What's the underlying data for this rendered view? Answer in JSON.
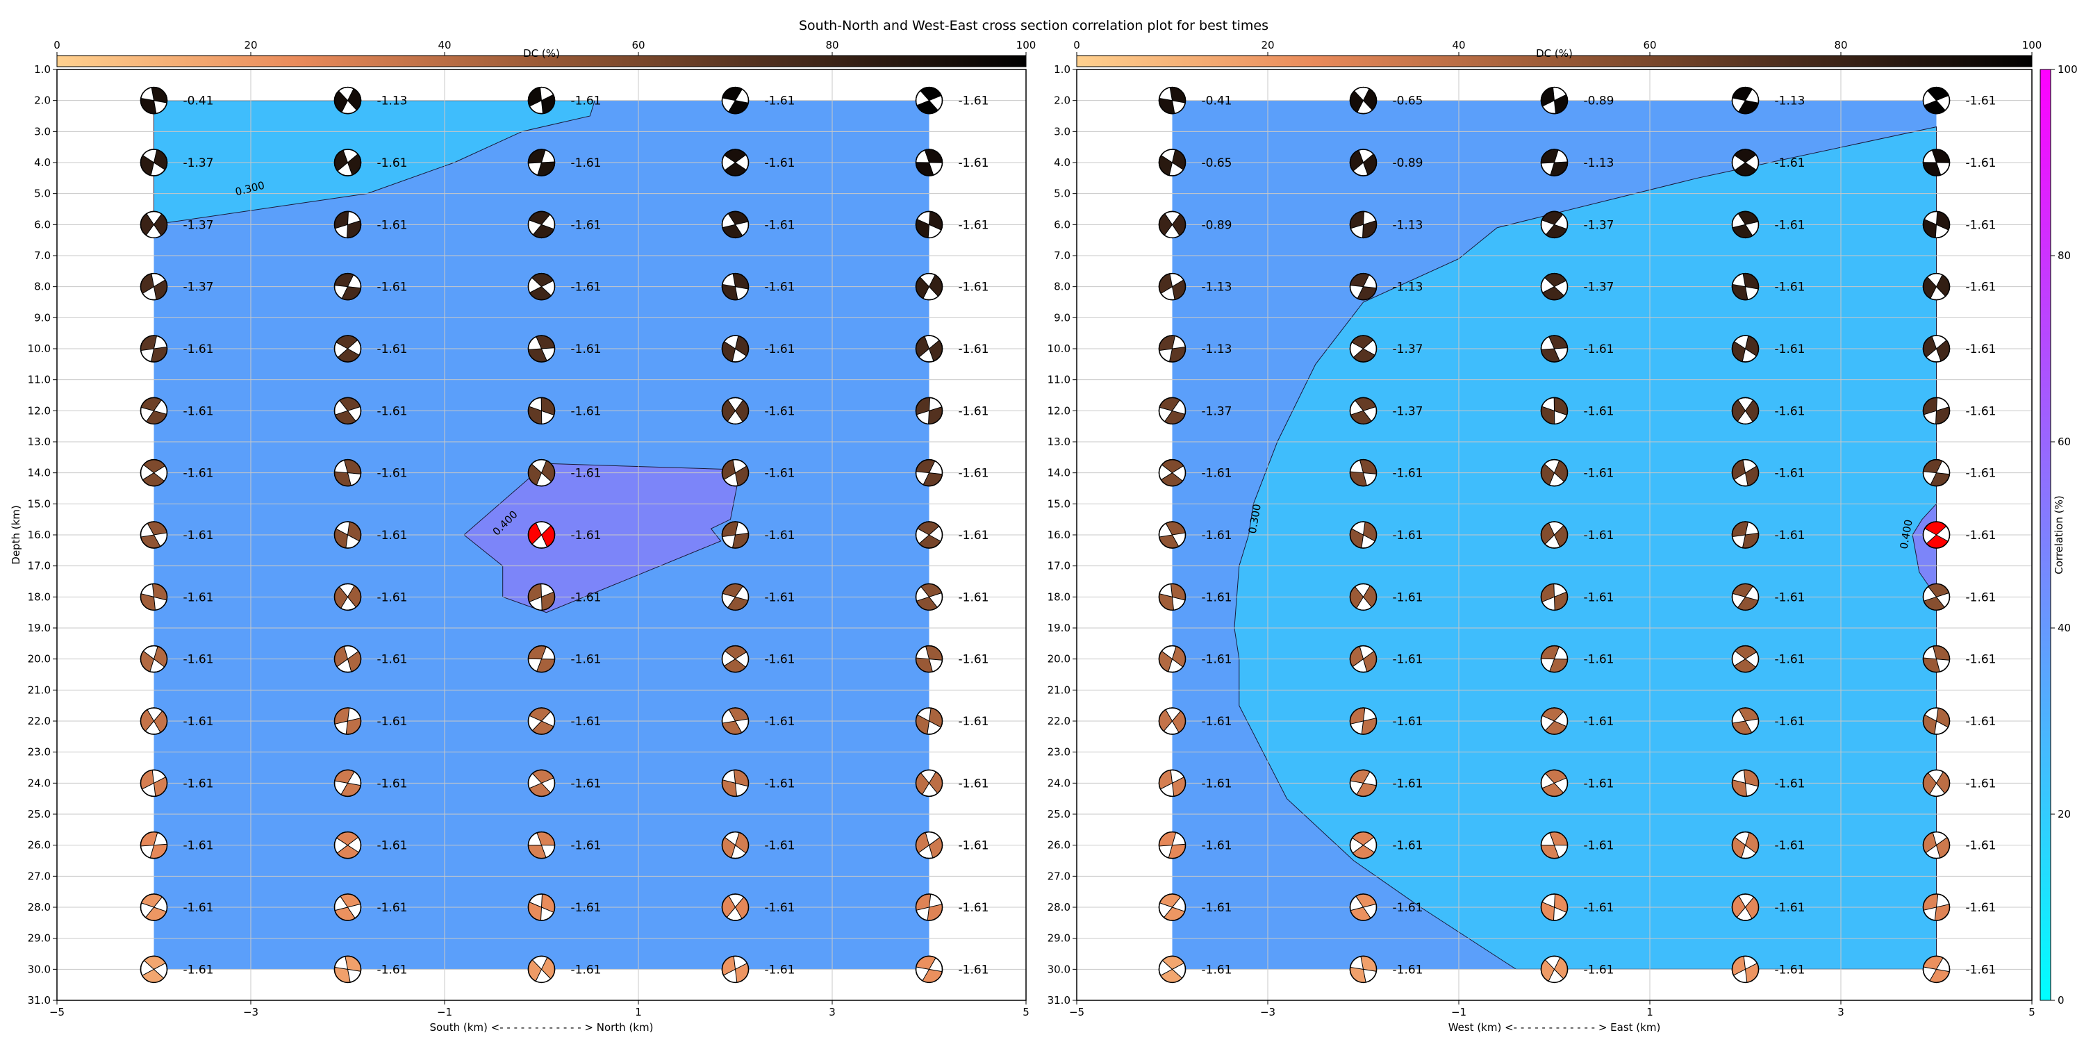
{
  "figure": {
    "title": "South-North and West-East cross section correlation plot for best times"
  },
  "colors": {
    "region_low": "#3fbdfc",
    "region_mid": "#5b9ffa",
    "region_high": "#7c85f9",
    "best_solution": "#ff0000",
    "grid": "#c8c8c8",
    "correlation_cmap": [
      "#00ffff",
      "#ff00ff"
    ],
    "dc_cmap": [
      "#ffd08e",
      "#e98a5a",
      "#9a5a36",
      "#4a2c1c",
      "#000000"
    ]
  },
  "chart_data": [
    {
      "type": "heatmap",
      "name": "south-north",
      "xlabel": "South (km) <- - - - - - - - - - - - > North (km)",
      "ylabel": "Depth (km)",
      "xlim": [
        -5,
        5
      ],
      "ylim": [
        31,
        1
      ],
      "x_ticks": [
        "−5",
        "−3",
        "−1",
        "1",
        "3",
        "5"
      ],
      "y_ticks": [
        "1.0",
        "2.0",
        "3.0",
        "4.0",
        "5.0",
        "6.0",
        "7.0",
        "8.0",
        "9.0",
        "10.0",
        "11.0",
        "12.0",
        "13.0",
        "14.0",
        "15.0",
        "16.0",
        "17.0",
        "18.0",
        "19.0",
        "20.0",
        "21.0",
        "22.0",
        "23.0",
        "24.0",
        "25.0",
        "26.0",
        "27.0",
        "28.0",
        "29.0",
        "30.0",
        "31.0"
      ],
      "grid": true,
      "region": {
        "x": [
          -4,
          4
        ],
        "depth": [
          2,
          30
        ]
      },
      "contours": [
        {
          "label": "0.300",
          "level": 0.3,
          "polygon": [
            [
              -4,
              6
            ],
            [
              -1.8,
              5
            ],
            [
              -0.9,
              4
            ],
            [
              -0.2,
              3
            ],
            [
              0.5,
              2.5
            ],
            [
              0.55,
              2
            ],
            [
              -4,
              2
            ]
          ]
        },
        {
          "label": "0.400",
          "level": 0.4,
          "polygon": [
            [
              0.05,
              13.7
            ],
            [
              2.05,
              13.9
            ],
            [
              1.95,
              15.5
            ],
            [
              1.75,
              15.8
            ],
            [
              1.85,
              16.2
            ],
            [
              0.05,
              18.5
            ],
            [
              -0.4,
              18.0
            ],
            [
              -0.4,
              17.0
            ],
            [
              -0.8,
              16.0
            ],
            [
              -0.1,
              14.1
            ]
          ]
        }
      ],
      "contour_label_positions": [
        [
          -3.0,
          4.95
        ],
        [
          -0.35,
          15.7
        ]
      ],
      "x": [
        -4,
        -2,
        0,
        2,
        4
      ],
      "depth": [
        2,
        4,
        6,
        8,
        10,
        12,
        14,
        16,
        18,
        20,
        22,
        24,
        26,
        28,
        30
      ],
      "values": [
        [
          "-0.41",
          "-1.13",
          "-1.61",
          "-1.61",
          "-1.61"
        ],
        [
          "-1.37",
          "-1.61",
          "-1.61",
          "-1.61",
          "-1.61"
        ],
        [
          "-1.37",
          "-1.61",
          "-1.61",
          "-1.61",
          "-1.61"
        ],
        [
          "-1.37",
          "-1.61",
          "-1.61",
          "-1.61",
          "-1.61"
        ],
        [
          "-1.61",
          "-1.61",
          "-1.61",
          "-1.61",
          "-1.61"
        ],
        [
          "-1.61",
          "-1.61",
          "-1.61",
          "-1.61",
          "-1.61"
        ],
        [
          "-1.61",
          "-1.61",
          "-1.61",
          "-1.61",
          "-1.61"
        ],
        [
          "-1.61",
          "-1.61",
          "-1.61",
          "-1.61",
          "-1.61"
        ],
        [
          "-1.61",
          "-1.61",
          "-1.61",
          "-1.61",
          "-1.61"
        ],
        [
          "-1.61",
          "-1.61",
          "-1.61",
          "-1.61",
          "-1.61"
        ],
        [
          "-1.61",
          "-1.61",
          "-1.61",
          "-1.61",
          "-1.61"
        ],
        [
          "-1.61",
          "-1.61",
          "-1.61",
          "-1.61",
          "-1.61"
        ],
        [
          "-1.61",
          "-1.61",
          "-1.61",
          "-1.61",
          "-1.61"
        ],
        [
          "-1.61",
          "-1.61",
          "-1.61",
          "-1.61",
          "-1.61"
        ],
        [
          "-1.61",
          "-1.61",
          "-1.61",
          "-1.61",
          "-1.61"
        ]
      ],
      "best_solution": {
        "x": 0,
        "depth": 16
      },
      "dc_colorbar": {
        "label": "DC (%)",
        "ticks": [
          "0",
          "20",
          "40",
          "60",
          "80",
          "100"
        ],
        "range": [
          0,
          100
        ]
      }
    },
    {
      "type": "heatmap",
      "name": "west-east",
      "xlabel": "West (km) <- - - - - - - - - - - - > East (km)",
      "ylabel": "",
      "xlim": [
        -5,
        5
      ],
      "ylim": [
        31,
        1
      ],
      "x_ticks": [
        "−5",
        "−3",
        "−1",
        "1",
        "3",
        "5"
      ],
      "y_ticks": [
        "1.0",
        "2.0",
        "3.0",
        "4.0",
        "5.0",
        "6.0",
        "7.0",
        "8.0",
        "9.0",
        "10.0",
        "11.0",
        "12.0",
        "13.0",
        "14.0",
        "15.0",
        "16.0",
        "17.0",
        "18.0",
        "19.0",
        "20.0",
        "21.0",
        "22.0",
        "23.0",
        "24.0",
        "25.0",
        "26.0",
        "27.0",
        "28.0",
        "29.0",
        "30.0",
        "31.0"
      ],
      "grid": true,
      "region": {
        "x": [
          -4,
          4
        ],
        "depth": [
          2,
          30
        ]
      },
      "contours": [
        {
          "label": "0.300",
          "level": 0.3,
          "polygon": [
            [
              4,
              2.85
            ],
            [
              1.5,
              4.5
            ],
            [
              -0.6,
              6.1
            ],
            [
              -1.0,
              7.1
            ],
            [
              -2.0,
              8.5
            ],
            [
              -2.5,
              10.5
            ],
            [
              -2.9,
              13.0
            ],
            [
              -3.15,
              15.0
            ],
            [
              -3.2,
              16.0
            ],
            [
              -3.3,
              17.0
            ],
            [
              -3.35,
              19.0
            ],
            [
              -3.3,
              20.0
            ],
            [
              -3.3,
              21.5
            ],
            [
              -2.8,
              24.5
            ],
            [
              -2.1,
              26.5
            ],
            [
              -1.4,
              28.0
            ],
            [
              -0.4,
              30.0
            ],
            [
              4,
              30
            ]
          ]
        },
        {
          "label": "0.400",
          "level": 0.4,
          "polygon": [
            [
              4,
              15.0
            ],
            [
              3.85,
              15.5
            ],
            [
              3.75,
              16.0
            ],
            [
              3.82,
              17.2
            ],
            [
              4,
              18.0
            ]
          ]
        }
      ],
      "contour_label_positions": [
        [
          -3.1,
          15.5
        ],
        [
          3.72,
          16.0
        ]
      ],
      "x": [
        -4,
        -2,
        0,
        2,
        4
      ],
      "depth": [
        2,
        4,
        6,
        8,
        10,
        12,
        14,
        16,
        18,
        20,
        22,
        24,
        26,
        28,
        30
      ],
      "values": [
        [
          "-0.41",
          "-0.65",
          "-0.89",
          "-1.13",
          "-1.61"
        ],
        [
          "-0.65",
          "-0.89",
          "-1.13",
          "-1.61",
          "-1.61"
        ],
        [
          "-0.89",
          "-1.13",
          "-1.37",
          "-1.61",
          "-1.61"
        ],
        [
          "-1.13",
          "-1.13",
          "-1.37",
          "-1.61",
          "-1.61"
        ],
        [
          "-1.13",
          "-1.37",
          "-1.61",
          "-1.61",
          "-1.61"
        ],
        [
          "-1.37",
          "-1.37",
          "-1.61",
          "-1.61",
          "-1.61"
        ],
        [
          "-1.61",
          "-1.61",
          "-1.61",
          "-1.61",
          "-1.61"
        ],
        [
          "-1.61",
          "-1.61",
          "-1.61",
          "-1.61",
          "-1.61"
        ],
        [
          "-1.61",
          "-1.61",
          "-1.61",
          "-1.61",
          "-1.61"
        ],
        [
          "-1.61",
          "-1.61",
          "-1.61",
          "-1.61",
          "-1.61"
        ],
        [
          "-1.61",
          "-1.61",
          "-1.61",
          "-1.61",
          "-1.61"
        ],
        [
          "-1.61",
          "-1.61",
          "-1.61",
          "-1.61",
          "-1.61"
        ],
        [
          "-1.61",
          "-1.61",
          "-1.61",
          "-1.61",
          "-1.61"
        ],
        [
          "-1.61",
          "-1.61",
          "-1.61",
          "-1.61",
          "-1.61"
        ],
        [
          "-1.61",
          "-1.61",
          "-1.61",
          "-1.61",
          "-1.61"
        ]
      ],
      "best_solution": {
        "x": 4,
        "depth": 16
      },
      "dc_colorbar": {
        "label": "DC (%)",
        "ticks": [
          "0",
          "20",
          "40",
          "60",
          "80",
          "100"
        ],
        "range": [
          0,
          100
        ]
      }
    }
  ],
  "correlation_colorbar": {
    "label": "Correlation (%)",
    "ticks": [
      "0",
      "20",
      "40",
      "60",
      "80",
      "100"
    ],
    "range": [
      0,
      100
    ]
  }
}
